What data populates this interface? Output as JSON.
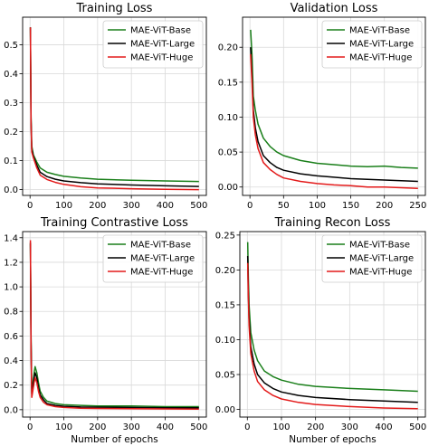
{
  "chart_data": [
    {
      "type": "line",
      "title": "Training Loss",
      "xlabel": "",
      "ylabel": "",
      "xlim": [
        -22,
        522
      ],
      "ylim": [
        -0.02,
        0.595
      ],
      "xticks": [
        0,
        100,
        200,
        300,
        400,
        500
      ],
      "xtick_labels": [
        "0",
        "100",
        "200",
        "300",
        "400",
        "500"
      ],
      "yticks": [
        0.0,
        0.1,
        0.2,
        0.3,
        0.4,
        0.5
      ],
      "ytick_labels": [
        "0.0",
        "0.1",
        "0.2",
        "0.3",
        "0.4",
        "0.5"
      ],
      "grid": true,
      "legend": "upper-right",
      "series": [
        {
          "name": "MAE-ViT-Base",
          "color": "#1a7f1a",
          "x": [
            1,
            3,
            5,
            10,
            20,
            30,
            50,
            75,
            100,
            150,
            200,
            300,
            400,
            500
          ],
          "y": [
            0.56,
            0.25,
            0.15,
            0.12,
            0.095,
            0.075,
            0.06,
            0.052,
            0.046,
            0.04,
            0.036,
            0.032,
            0.03,
            0.028
          ]
        },
        {
          "name": "MAE-ViT-Large",
          "color": "#000000",
          "x": [
            1,
            3,
            5,
            10,
            20,
            30,
            50,
            75,
            100,
            150,
            200,
            300,
            400,
            500
          ],
          "y": [
            0.56,
            0.24,
            0.14,
            0.115,
            0.085,
            0.06,
            0.045,
            0.036,
            0.03,
            0.024,
            0.02,
            0.016,
            0.013,
            0.011
          ]
        },
        {
          "name": "MAE-ViT-Huge",
          "color": "#e31a1a",
          "x": [
            1,
            3,
            5,
            10,
            20,
            30,
            50,
            75,
            100,
            150,
            200,
            300,
            400,
            500
          ],
          "y": [
            0.56,
            0.23,
            0.13,
            0.11,
            0.075,
            0.05,
            0.035,
            0.025,
            0.018,
            0.01,
            0.006,
            0.003,
            0.001,
            0.0
          ]
        }
      ]
    },
    {
      "type": "line",
      "title": "Validation Loss",
      "xlabel": "",
      "ylabel": "",
      "xlim": [
        -11,
        261
      ],
      "ylim": [
        -0.012,
        0.243
      ],
      "xticks": [
        0,
        50,
        100,
        150,
        200,
        250
      ],
      "xtick_labels": [
        "0",
        "50",
        "100",
        "150",
        "200",
        "250"
      ],
      "yticks": [
        0.0,
        0.05,
        0.1,
        0.15,
        0.2
      ],
      "ytick_labels": [
        "0.00",
        "0.05",
        "0.10",
        "0.15",
        "0.20"
      ],
      "grid": true,
      "legend": "upper-right",
      "series": [
        {
          "name": "MAE-ViT-Base",
          "color": "#1a7f1a",
          "x": [
            1,
            3,
            5,
            8,
            12,
            20,
            30,
            40,
            50,
            75,
            100,
            125,
            150,
            175,
            200,
            225,
            250
          ],
          "y": [
            0.225,
            0.19,
            0.13,
            0.11,
            0.09,
            0.07,
            0.058,
            0.05,
            0.045,
            0.038,
            0.034,
            0.032,
            0.03,
            0.029,
            0.03,
            0.028,
            0.027
          ]
        },
        {
          "name": "MAE-ViT-Large",
          "color": "#000000",
          "x": [
            1,
            3,
            5,
            8,
            12,
            20,
            30,
            40,
            50,
            75,
            100,
            125,
            150,
            175,
            200,
            225,
            250
          ],
          "y": [
            0.2,
            0.16,
            0.11,
            0.085,
            0.065,
            0.045,
            0.035,
            0.028,
            0.024,
            0.019,
            0.016,
            0.014,
            0.012,
            0.011,
            0.01,
            0.009,
            0.008
          ]
        },
        {
          "name": "MAE-ViT-Huge",
          "color": "#e31a1a",
          "x": [
            1,
            3,
            5,
            8,
            12,
            20,
            30,
            40,
            50,
            75,
            100,
            125,
            150,
            175,
            200,
            225,
            250
          ],
          "y": [
            0.19,
            0.15,
            0.1,
            0.075,
            0.055,
            0.035,
            0.025,
            0.018,
            0.013,
            0.008,
            0.005,
            0.003,
            0.002,
            0.0,
            0.0,
            -0.001,
            -0.002
          ]
        }
      ]
    },
    {
      "type": "line",
      "title": "Training Contrastive Loss",
      "xlabel": "Number of epochs",
      "ylabel": "",
      "xlim": [
        -22,
        522
      ],
      "ylim": [
        -0.06,
        1.45
      ],
      "xticks": [
        0,
        100,
        200,
        300,
        400,
        500
      ],
      "xtick_labels": [
        "0",
        "100",
        "200",
        "300",
        "400",
        "500"
      ],
      "yticks": [
        0.0,
        0.2,
        0.4,
        0.6,
        0.8,
        1.0,
        1.2,
        1.4
      ],
      "ytick_labels": [
        "0.0",
        "0.2",
        "0.4",
        "0.6",
        "0.8",
        "1.0",
        "1.2",
        "1.4"
      ],
      "grid": true,
      "legend": "upper-right",
      "series": [
        {
          "name": "MAE-ViT-Base",
          "color": "#1a7f1a",
          "x": [
            1,
            3,
            5,
            8,
            12,
            15,
            20,
            25,
            30,
            40,
            50,
            75,
            100,
            150,
            200,
            300,
            400,
            500
          ],
          "y": [
            1.35,
            0.6,
            0.15,
            0.2,
            0.3,
            0.35,
            0.3,
            0.22,
            0.15,
            0.1,
            0.07,
            0.05,
            0.04,
            0.035,
            0.03,
            0.03,
            0.025,
            0.025
          ]
        },
        {
          "name": "MAE-ViT-Large",
          "color": "#000000",
          "x": [
            1,
            3,
            5,
            8,
            12,
            15,
            20,
            25,
            30,
            40,
            50,
            75,
            100,
            150,
            200,
            300,
            400,
            500
          ],
          "y": [
            1.36,
            0.55,
            0.13,
            0.18,
            0.26,
            0.3,
            0.26,
            0.18,
            0.12,
            0.08,
            0.05,
            0.035,
            0.028,
            0.022,
            0.02,
            0.018,
            0.015,
            0.015
          ]
        },
        {
          "name": "MAE-ViT-Huge",
          "color": "#e31a1a",
          "x": [
            1,
            3,
            5,
            8,
            12,
            15,
            20,
            25,
            30,
            40,
            50,
            75,
            100,
            150,
            200,
            300,
            400,
            500
          ],
          "y": [
            1.38,
            0.5,
            0.1,
            0.15,
            0.22,
            0.26,
            0.22,
            0.15,
            0.1,
            0.06,
            0.04,
            0.025,
            0.018,
            0.012,
            0.01,
            0.008,
            0.006,
            0.005
          ]
        }
      ]
    },
    {
      "type": "line",
      "title": "Training Recon Loss",
      "xlabel": "Number of epochs",
      "ylabel": "",
      "xlim": [
        -22,
        522
      ],
      "ylim": [
        -0.011,
        0.255
      ],
      "xticks": [
        0,
        100,
        200,
        300,
        400,
        500
      ],
      "xtick_labels": [
        "0",
        "100",
        "200",
        "300",
        "400",
        "500"
      ],
      "yticks": [
        0.0,
        0.05,
        0.1,
        0.15,
        0.2,
        0.25
      ],
      "ytick_labels": [
        "0.00",
        "0.05",
        "0.10",
        "0.15",
        "0.20",
        "0.25"
      ],
      "grid": true,
      "legend": "upper-right",
      "series": [
        {
          "name": "MAE-ViT-Base",
          "color": "#1a7f1a",
          "x": [
            1,
            3,
            5,
            10,
            20,
            30,
            50,
            75,
            100,
            150,
            200,
            300,
            400,
            500
          ],
          "y": [
            0.24,
            0.19,
            0.15,
            0.11,
            0.085,
            0.07,
            0.055,
            0.047,
            0.042,
            0.036,
            0.033,
            0.03,
            0.028,
            0.026
          ]
        },
        {
          "name": "MAE-ViT-Large",
          "color": "#000000",
          "x": [
            1,
            3,
            5,
            10,
            20,
            30,
            50,
            75,
            100,
            150,
            200,
            300,
            400,
            500
          ],
          "y": [
            0.22,
            0.17,
            0.13,
            0.09,
            0.065,
            0.05,
            0.038,
            0.03,
            0.025,
            0.02,
            0.017,
            0.014,
            0.012,
            0.01
          ]
        },
        {
          "name": "MAE-ViT-Huge",
          "color": "#e31a1a",
          "x": [
            1,
            3,
            5,
            10,
            20,
            30,
            50,
            75,
            100,
            150,
            200,
            300,
            400,
            500
          ],
          "y": [
            0.21,
            0.16,
            0.12,
            0.08,
            0.055,
            0.04,
            0.028,
            0.02,
            0.015,
            0.01,
            0.007,
            0.004,
            0.002,
            0.001
          ]
        }
      ]
    }
  ]
}
